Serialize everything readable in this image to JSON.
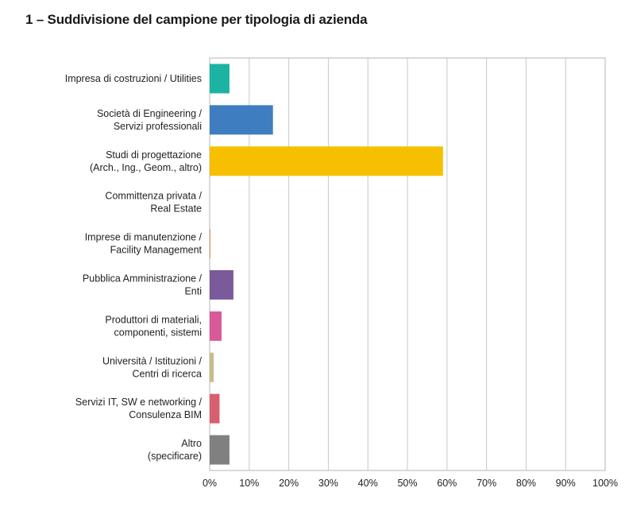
{
  "page": {
    "title": "1 – Suddivisione del campione per tipologia di azienda"
  },
  "chart_data": {
    "type": "bar",
    "orientation": "horizontal",
    "categories": [
      [
        "Impresa di costruzioni / Utilities"
      ],
      [
        "Società di Engineering /",
        "Servizi professionali"
      ],
      [
        "Studi di progettazione",
        "(Arch., Ing., Geom., altro)"
      ],
      [
        "Committenza privata /",
        "Real Estate"
      ],
      [
        "Imprese di manutenzione /",
        "Facility Management"
      ],
      [
        "Pubblica Amministrazione /",
        "Enti"
      ],
      [
        "Produttori di materiali,",
        "componenti, sistemi"
      ],
      [
        "Università / Istituzioni /",
        "Centri di ricerca"
      ],
      [
        "Servizi IT, SW e networking /",
        "Consulenza BIM"
      ],
      [
        "Altro",
        "(specificare)"
      ]
    ],
    "values": [
      5,
      16,
      59,
      0,
      0.2,
      6,
      3,
      1,
      2.5,
      5
    ],
    "colors": [
      "#1db3a3",
      "#3f7dc1",
      "#f6c000",
      "#c9c9c9",
      "#e0955a",
      "#7b5a9b",
      "#d85a99",
      "#c9ba87",
      "#d85f6e",
      "#808080"
    ],
    "xlim": [
      0,
      100
    ],
    "x_ticks": [
      "0%",
      "10%",
      "20%",
      "30%",
      "40%",
      "50%",
      "60%",
      "70%",
      "80%",
      "90%",
      "100%"
    ],
    "x_tick_values": [
      0,
      10,
      20,
      30,
      40,
      50,
      60,
      70,
      80,
      90,
      100
    ],
    "grid": true,
    "legend": "none",
    "title": "",
    "xlabel": "",
    "ylabel": ""
  }
}
